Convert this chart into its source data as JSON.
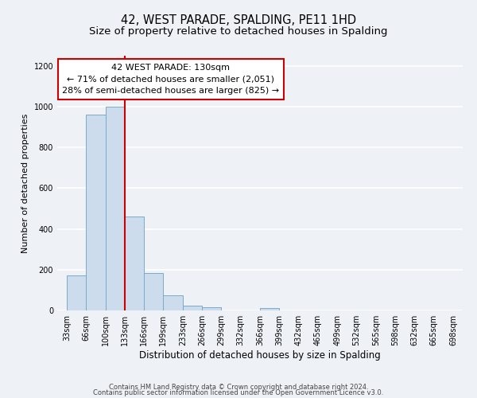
{
  "title": "42, WEST PARADE, SPALDING, PE11 1HD",
  "subtitle": "Size of property relative to detached houses in Spalding",
  "xlabel": "Distribution of detached houses by size in Spalding",
  "ylabel": "Number of detached properties",
  "bar_edges": [
    33,
    66,
    100,
    133,
    166,
    199,
    233,
    266,
    299,
    332,
    366,
    399,
    432,
    465,
    499,
    532,
    565,
    598,
    632,
    665,
    698
  ],
  "bar_heights": [
    170,
    960,
    1000,
    460,
    185,
    75,
    25,
    15,
    0,
    0,
    10,
    0,
    0,
    0,
    0,
    0,
    0,
    0,
    0,
    0
  ],
  "bar_color": "#ccdcec",
  "bar_edgecolor": "#7aaac8",
  "property_line_x": 133,
  "property_line_color": "#cc0000",
  "annotation_line1": "42 WEST PARADE: 130sqm",
  "annotation_line2": "← 71% of detached houses are smaller (2,051)",
  "annotation_line3": "28% of semi-detached houses are larger (825) →",
  "annotation_facecolor": "white",
  "annotation_edgecolor": "#cc0000",
  "ylim": [
    0,
    1250
  ],
  "yticks": [
    0,
    200,
    400,
    600,
    800,
    1000,
    1200
  ],
  "tick_labels": [
    "33sqm",
    "66sqm",
    "100sqm",
    "133sqm",
    "166sqm",
    "199sqm",
    "233sqm",
    "266sqm",
    "299sqm",
    "332sqm",
    "366sqm",
    "399sqm",
    "432sqm",
    "465sqm",
    "499sqm",
    "532sqm",
    "565sqm",
    "598sqm",
    "632sqm",
    "665sqm",
    "698sqm"
  ],
  "footnote1": "Contains HM Land Registry data © Crown copyright and database right 2024.",
  "footnote2": "Contains public sector information licensed under the Open Government Licence v3.0.",
  "background_color": "#eef2f7",
  "grid_color": "white",
  "title_fontsize": 10.5,
  "subtitle_fontsize": 9.5,
  "xlabel_fontsize": 8.5,
  "ylabel_fontsize": 8,
  "tick_fontsize": 7,
  "annotation_fontsize": 8,
  "footnote_fontsize": 6
}
